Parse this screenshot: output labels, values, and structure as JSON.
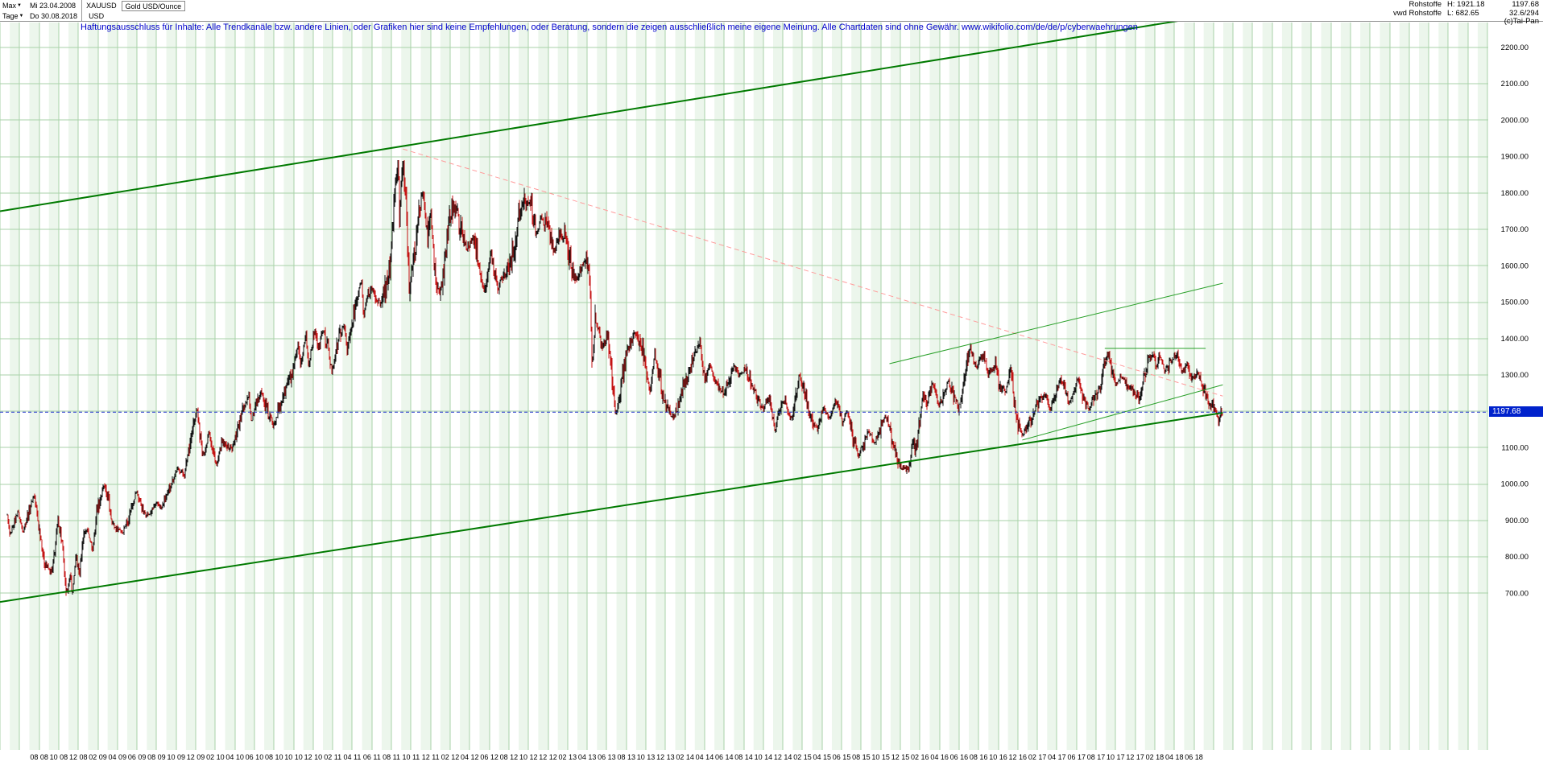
{
  "header": {
    "period": "Max",
    "interval": "Tage",
    "date_from": "Mi 23.04.2008",
    "date_to": "Do 30.08.2018",
    "symbol": "XAUUSD",
    "currency": "USD",
    "instrument": "Gold USD/Ounce"
  },
  "disclaimer": "Haftungsausschluss für Inhalte: Alle Trendkanäle bzw. andere Linien, oder Grafiken hier sind keine Empfehlungen, oder Beratung, sondern die zeigen ausschließlich meine eigene Meinung. Alle Chartdaten sind ohne Gewähr.  www.wikifolio.com/de/de/p/cyberwaehrungen",
  "info": {
    "category": "Rohstoffe",
    "feed": "vwd Rohstoffe",
    "high": "H: 1921.18",
    "low": "L: 682.65",
    "last": "1197.68",
    "range_indicator": "32.6/294",
    "copyright": "(c)Tai-Pan"
  },
  "chart_data": {
    "type": "candlestick",
    "title": "Gold USD/Ounce",
    "symbol": "XAUUSD",
    "x_range": [
      "23.04.2008",
      "30.08.2018"
    ],
    "ylim": [
      640,
      2270
    ],
    "grid": true,
    "last_price": 1197.68,
    "period_high": 1921.18,
    "period_low": 682.65,
    "y_ticks": [
      700,
      800,
      900,
      1000,
      1100,
      1200,
      1300,
      1400,
      1500,
      1600,
      1700,
      1800,
      1900,
      2000,
      2100,
      2200
    ],
    "x_tick_labels": [
      "08 08",
      "10 08",
      "12 08",
      "02 09",
      "04 09",
      "06 09",
      "08 09",
      "10 09",
      "12 09",
      "02 10",
      "04 10",
      "06 10",
      "08 10",
      "10 10",
      "12 10",
      "02 11",
      "04 11",
      "06 11",
      "08 11",
      "10 11",
      "12 11",
      "02 12",
      "04 12",
      "06 12",
      "08 12",
      "10 12",
      "12 12",
      "02 13",
      "04 13",
      "06 13",
      "08 13",
      "10 13",
      "12 13",
      "02 14",
      "04 14",
      "06 14",
      "08 14",
      "10 14",
      "12 14",
      "02 15",
      "04 15",
      "06 15",
      "08 15",
      "10 15",
      "12 15",
      "02 16",
      "04 16",
      "06 16",
      "08 16",
      "10 16",
      "12 16",
      "02 17",
      "04 17",
      "06 17",
      "08 17",
      "10 17",
      "12 17",
      "02 18",
      "04 18",
      "06 18"
    ],
    "series_anchors_format": [
      "year",
      "month",
      "day",
      "price_usd"
    ],
    "series_anchors": [
      [
        2008,
        4,
        23,
        909
      ],
      [
        2008,
        5,
        2,
        855
      ],
      [
        2008,
        5,
        26,
        926
      ],
      [
        2008,
        6,
        12,
        872
      ],
      [
        2008,
        7,
        15,
        978
      ],
      [
        2008,
        8,
        15,
        792
      ],
      [
        2008,
        9,
        11,
        745
      ],
      [
        2008,
        9,
        29,
        898
      ],
      [
        2008,
        10,
        10,
        852
      ],
      [
        2008,
        10,
        24,
        692
      ],
      [
        2008,
        11,
        7,
        752
      ],
      [
        2008,
        11,
        13,
        705
      ],
      [
        2008,
        11,
        25,
        815
      ],
      [
        2008,
        12,
        5,
        752
      ],
      [
        2008,
        12,
        17,
        868
      ],
      [
        2008,
        12,
        31,
        878
      ],
      [
        2009,
        1,
        15,
        812
      ],
      [
        2009,
        1,
        30,
        925
      ],
      [
        2009,
        2,
        20,
        995
      ],
      [
        2009,
        3,
        18,
        890
      ],
      [
        2009,
        4,
        17,
        870
      ],
      [
        2009,
        5,
        29,
        975
      ],
      [
        2009,
        6,
        22,
        921
      ],
      [
        2009,
        7,
        8,
        910
      ],
      [
        2009,
        7,
        31,
        950
      ],
      [
        2009,
        8,
        17,
        935
      ],
      [
        2009,
        9,
        17,
        1013
      ],
      [
        2009,
        10,
        6,
        1040
      ],
      [
        2009,
        10,
        28,
        1028
      ],
      [
        2009,
        11,
        30,
        1178
      ],
      [
        2009,
        12,
        3,
        1215
      ],
      [
        2009,
        12,
        22,
        1075
      ],
      [
        2009,
        12,
        31,
        1095
      ],
      [
        2010,
        1,
        11,
        1153
      ],
      [
        2010,
        2,
        5,
        1052
      ],
      [
        2010,
        2,
        22,
        1118
      ],
      [
        2010,
        3,
        24,
        1088
      ],
      [
        2010,
        4,
        12,
        1162
      ],
      [
        2010,
        5,
        14,
        1248
      ],
      [
        2010,
        5,
        21,
        1176
      ],
      [
        2010,
        6,
        21,
        1261
      ],
      [
        2010,
        7,
        28,
        1158
      ],
      [
        2010,
        8,
        30,
        1237
      ],
      [
        2010,
        9,
        30,
        1310
      ],
      [
        2010,
        10,
        14,
        1380
      ],
      [
        2010,
        10,
        22,
        1320
      ],
      [
        2010,
        11,
        9,
        1424
      ],
      [
        2010,
        11,
        17,
        1332
      ],
      [
        2010,
        12,
        7,
        1430
      ],
      [
        2010,
        12,
        16,
        1370
      ],
      [
        2010,
        12,
        31,
        1421
      ],
      [
        2011,
        1,
        28,
        1310
      ],
      [
        2011,
        2,
        24,
        1410
      ],
      [
        2011,
        3,
        7,
        1437
      ],
      [
        2011,
        3,
        15,
        1380
      ],
      [
        2011,
        4,
        29,
        1566
      ],
      [
        2011,
        5,
        5,
        1472
      ],
      [
        2011,
        5,
        31,
        1535
      ],
      [
        2011,
        7,
        1,
        1482
      ],
      [
        2011,
        7,
        29,
        1628
      ],
      [
        2011,
        8,
        10,
        1800
      ],
      [
        2011,
        8,
        23,
        1898
      ],
      [
        2011,
        8,
        25,
        1705
      ],
      [
        2011,
        9,
        6,
        1920
      ],
      [
        2011,
        9,
        16,
        1775
      ],
      [
        2011,
        9,
        26,
        1532
      ],
      [
        2011,
        10,
        6,
        1595
      ],
      [
        2011,
        10,
        28,
        1747
      ],
      [
        2011,
        11,
        8,
        1795
      ],
      [
        2011,
        11,
        21,
        1678
      ],
      [
        2011,
        12,
        2,
        1747
      ],
      [
        2011,
        12,
        15,
        1565
      ],
      [
        2011,
        12,
        29,
        1523
      ],
      [
        2012,
        1,
        31,
        1738
      ],
      [
        2012,
        2,
        23,
        1780
      ],
      [
        2012,
        2,
        29,
        1695
      ],
      [
        2012,
        3,
        22,
        1642
      ],
      [
        2012,
        4,
        12,
        1675
      ],
      [
        2012,
        5,
        16,
        1536
      ],
      [
        2012,
        6,
        6,
        1632
      ],
      [
        2012,
        6,
        28,
        1552
      ],
      [
        2012,
        7,
        24,
        1576
      ],
      [
        2012,
        8,
        22,
        1655
      ],
      [
        2012,
        9,
        14,
        1775
      ],
      [
        2012,
        10,
        4,
        1791
      ],
      [
        2012,
        10,
        24,
        1701
      ],
      [
        2012,
        11,
        9,
        1731
      ],
      [
        2012,
        11,
        28,
        1718
      ],
      [
        2012,
        12,
        20,
        1636
      ],
      [
        2012,
        12,
        31,
        1664
      ],
      [
        2013,
        1,
        23,
        1685
      ],
      [
        2013,
        2,
        21,
        1564
      ],
      [
        2013,
        3,
        21,
        1614
      ],
      [
        2013,
        4,
        9,
        1585
      ],
      [
        2013,
        4,
        16,
        1321
      ],
      [
        2013,
        4,
        26,
        1462
      ],
      [
        2013,
        5,
        17,
        1360
      ],
      [
        2013,
        6,
        4,
        1412
      ],
      [
        2013,
        6,
        28,
        1180
      ],
      [
        2013,
        7,
        24,
        1335
      ],
      [
        2013,
        8,
        28,
        1427
      ],
      [
        2013,
        9,
        18,
        1364
      ],
      [
        2013,
        10,
        15,
        1253
      ],
      [
        2013,
        10,
        28,
        1352
      ],
      [
        2013,
        11,
        25,
        1242
      ],
      [
        2013,
        12,
        19,
        1188
      ],
      [
        2013,
        12,
        31,
        1202
      ],
      [
        2014,
        1,
        27,
        1268
      ],
      [
        2014,
        2,
        26,
        1342
      ],
      [
        2014,
        3,
        17,
        1382
      ],
      [
        2014,
        4,
        1,
        1280
      ],
      [
        2014,
        4,
        14,
        1327
      ],
      [
        2014,
        5,
        30,
        1250
      ],
      [
        2014,
        6,
        30,
        1327
      ],
      [
        2014,
        7,
        15,
        1294
      ],
      [
        2014,
        8,
        8,
        1317
      ],
      [
        2014,
        8,
        21,
        1276
      ],
      [
        2014,
        9,
        30,
        1209
      ],
      [
        2014,
        10,
        21,
        1248
      ],
      [
        2014,
        11,
        7,
        1138
      ],
      [
        2014,
        11,
        14,
        1190
      ],
      [
        2014,
        12,
        9,
        1232
      ],
      [
        2014,
        12,
        22,
        1173
      ],
      [
        2014,
        12,
        31,
        1184
      ],
      [
        2015,
        1,
        22,
        1302
      ],
      [
        2015,
        2,
        24,
        1197
      ],
      [
        2015,
        3,
        17,
        1149
      ],
      [
        2015,
        4,
        6,
        1215
      ],
      [
        2015,
        4,
        24,
        1178
      ],
      [
        2015,
        5,
        14,
        1226
      ],
      [
        2015,
        6,
        5,
        1168
      ],
      [
        2015,
        6,
        18,
        1202
      ],
      [
        2015,
        7,
        24,
        1079
      ],
      [
        2015,
        8,
        24,
        1154
      ],
      [
        2015,
        9,
        11,
        1103
      ],
      [
        2015,
        10,
        15,
        1188
      ],
      [
        2015,
        11,
        27,
        1057
      ],
      [
        2015,
        12,
        3,
        1046
      ],
      [
        2015,
        12,
        17,
        1051
      ],
      [
        2015,
        12,
        31,
        1061
      ],
      [
        2016,
        1,
        7,
        1108
      ],
      [
        2016,
        1,
        22,
        1097
      ],
      [
        2016,
        2,
        11,
        1247
      ],
      [
        2016,
        2,
        22,
        1210
      ],
      [
        2016,
        3,
        11,
        1274
      ],
      [
        2016,
        4,
        1,
        1217
      ],
      [
        2016,
        4,
        29,
        1292
      ],
      [
        2016,
        5,
        30,
        1205
      ],
      [
        2016,
        6,
        24,
        1322
      ],
      [
        2016,
        7,
        6,
        1367
      ],
      [
        2016,
        7,
        21,
        1320
      ],
      [
        2016,
        8,
        18,
        1352
      ],
      [
        2016,
        9,
        1,
        1306
      ],
      [
        2016,
        9,
        22,
        1337
      ],
      [
        2016,
        10,
        4,
        1268
      ],
      [
        2016,
        10,
        26,
        1266
      ],
      [
        2016,
        11,
        9,
        1305
      ],
      [
        2016,
        11,
        25,
        1184
      ],
      [
        2016,
        12,
        15,
        1127
      ],
      [
        2016,
        12,
        30,
        1152
      ],
      [
        2017,
        1,
        24,
        1210
      ],
      [
        2017,
        2,
        27,
        1257
      ],
      [
        2017,
        3,
        10,
        1200
      ],
      [
        2017,
        3,
        27,
        1254
      ],
      [
        2017,
        4,
        13,
        1288
      ],
      [
        2017,
        5,
        9,
        1216
      ],
      [
        2017,
        6,
        6,
        1294
      ],
      [
        2017,
        6,
        21,
        1246
      ],
      [
        2017,
        7,
        10,
        1212
      ],
      [
        2017,
        8,
        8,
        1258
      ],
      [
        2017,
        9,
        8,
        1351
      ],
      [
        2017,
        9,
        27,
        1283
      ],
      [
        2017,
        10,
        6,
        1270
      ],
      [
        2017,
        10,
        16,
        1295
      ],
      [
        2017,
        11,
        10,
        1275
      ],
      [
        2017,
        12,
        12,
        1240
      ],
      [
        2017,
        12,
        29,
        1303
      ],
      [
        2018,
        1,
        25,
        1358
      ],
      [
        2018,
        2,
        8,
        1314
      ],
      [
        2018,
        2,
        15,
        1353
      ],
      [
        2018,
        3,
        1,
        1305
      ],
      [
        2018,
        3,
        26,
        1352
      ],
      [
        2018,
        4,
        11,
        1353
      ],
      [
        2018,
        4,
        23,
        1324
      ],
      [
        2018,
        5,
        11,
        1320
      ],
      [
        2018,
        5,
        21,
        1292
      ],
      [
        2018,
        6,
        14,
        1302
      ],
      [
        2018,
        6,
        29,
        1252
      ],
      [
        2018,
        7,
        19,
        1222
      ],
      [
        2018,
        8,
        2,
        1215
      ],
      [
        2018,
        8,
        16,
        1174
      ],
      [
        2018,
        8,
        24,
        1206
      ],
      [
        2018,
        8,
        30,
        1197.68
      ]
    ],
    "trend_lines": [
      {
        "name": "channel-upper",
        "from": [
          2008,
          4,
          1,
          1750
        ],
        "to": [
          2018,
          8,
          30,
          2293
        ],
        "color": "#007a00",
        "width": 2,
        "dash": ""
      },
      {
        "name": "channel-lower",
        "from": [
          2008,
          4,
          1,
          676
        ],
        "to": [
          2018,
          8,
          30,
          1196
        ],
        "color": "#007a00",
        "width": 2,
        "dash": ""
      },
      {
        "name": "downtrend-from-ath",
        "from": [
          2011,
          9,
          6,
          1921
        ],
        "to": [
          2018,
          8,
          30,
          1242
        ],
        "color": "#ff9a9a",
        "width": 1,
        "dash": "6 4"
      },
      {
        "name": "wedge-upper",
        "from": [
          2015,
          10,
          28,
          1331
        ],
        "to": [
          2018,
          8,
          30,
          1552
        ],
        "color": "#2aa02a",
        "width": 1,
        "dash": ""
      },
      {
        "name": "wedge-lower",
        "from": [
          2016,
          12,
          15,
          1121
        ],
        "to": [
          2018,
          8,
          30,
          1273
        ],
        "color": "#2aa02a",
        "width": 1,
        "dash": ""
      },
      {
        "name": "resistance-flat",
        "from": [
          2017,
          8,
          28,
          1373
        ],
        "to": [
          2018,
          7,
          7,
          1373
        ],
        "color": "#2aa02a",
        "width": 1,
        "dash": ""
      }
    ],
    "last_price_line": {
      "price": 1197.68,
      "color": "#2233cc",
      "dash": "4 3"
    },
    "colors": {
      "up": "#141414",
      "down": "#c41414",
      "grid": "#a8d2a8",
      "stripe": "#ecf6ec",
      "chip_bg": "#0022cc",
      "disclaimer_text": "#0000cc"
    }
  }
}
